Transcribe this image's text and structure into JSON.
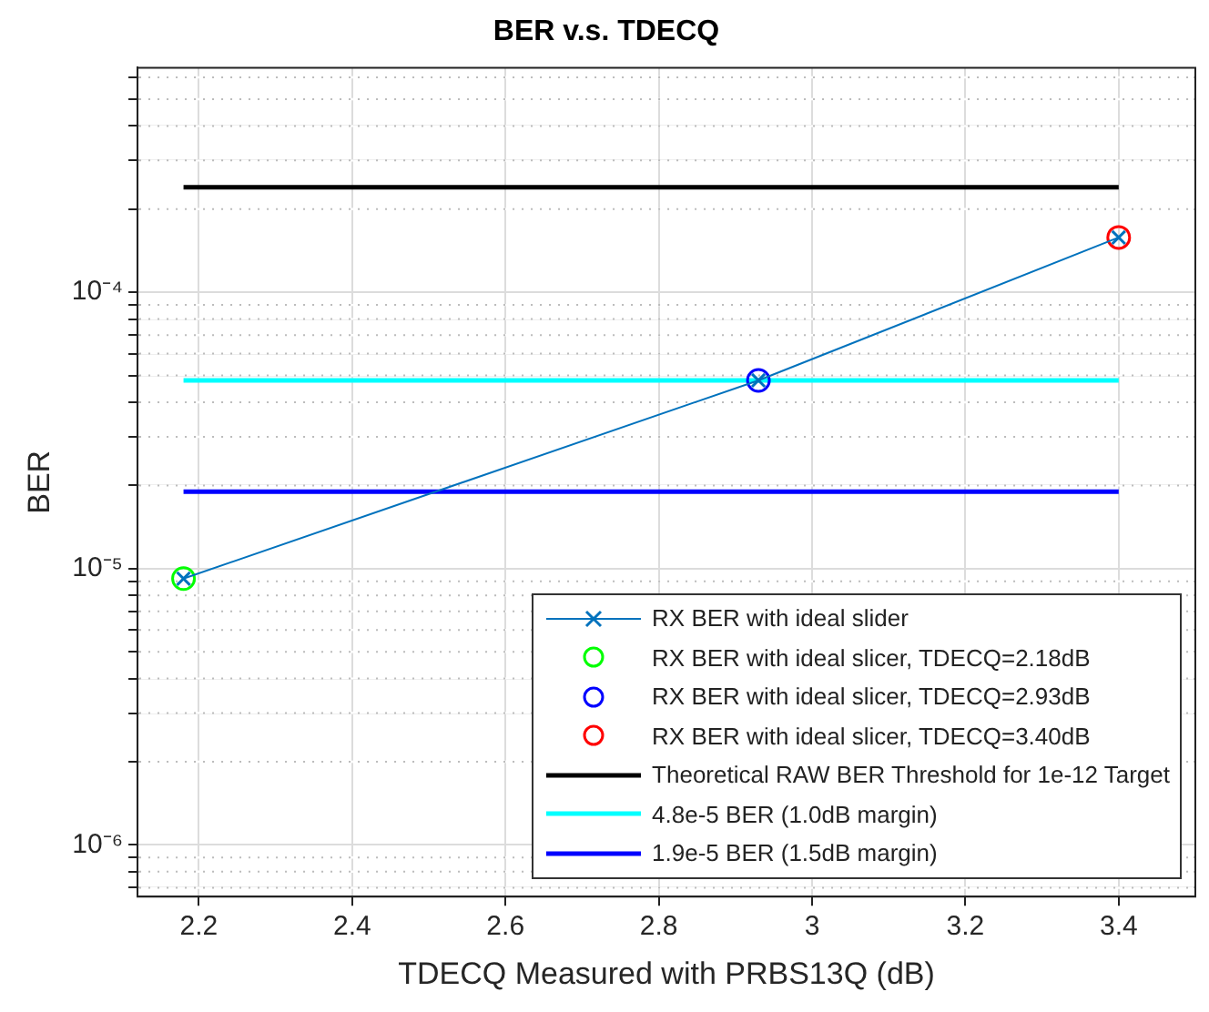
{
  "chart_data": {
    "type": "line",
    "title": "BER v.s. TDECQ",
    "xlabel": "TDECQ Measured with PRBS13Q (dB)",
    "ylabel": "BER",
    "series": [
      {
        "name": "RX BER with ideal slider",
        "color": "#0072bd",
        "marker": "cross",
        "x": [
          2.18,
          2.93,
          3.4
        ],
        "values": [
          9.2e-06,
          4.8e-05,
          0.000158
        ]
      },
      {
        "name": "RX BER with ideal slicer, TDECQ=2.18dB",
        "type": "scatter",
        "color": "#00ff00",
        "marker": "circle",
        "x": [
          2.18
        ],
        "values": [
          9.2e-06
        ]
      },
      {
        "name": "RX BER with ideal slicer, TDECQ=2.93dB",
        "type": "scatter",
        "color": "#0000ff",
        "marker": "circle",
        "x": [
          2.93
        ],
        "values": [
          4.8e-05
        ]
      },
      {
        "name": "RX BER with ideal slicer, TDECQ=3.40dB",
        "type": "scatter",
        "color": "#ff0000",
        "marker": "circle",
        "x": [
          3.4
        ],
        "values": [
          0.000158
        ]
      },
      {
        "name": "Theoretical RAW BER Threshold for 1e-12 Target",
        "color": "#000000",
        "marker": "none",
        "x": [
          2.18,
          3.4
        ],
        "values": [
          0.00024,
          0.00024
        ]
      },
      {
        "name": "4.8e-5 BER (1.0dB margin)",
        "color": "#00ffff",
        "marker": "none",
        "x": [
          2.18,
          3.4
        ],
        "values": [
          4.8e-05,
          4.8e-05
        ]
      },
      {
        "name": "1.9e-5 BER (1.5dB margin)",
        "color": "#0000ff",
        "marker": "none",
        "x": [
          2.18,
          3.4
        ],
        "values": [
          1.9e-05,
          1.9e-05
        ]
      }
    ],
    "log": "y",
    "grid": true,
    "legend": "bottom right",
    "xlim": [
      2.12,
      3.5
    ],
    "xticks": [
      2.2,
      2.4,
      2.6,
      2.8,
      3,
      3.2,
      3.4
    ],
    "ylim": [
      6.5e-07,
      0.00065
    ],
    "yticks": [
      {
        "value": 7e-07,
        "label": null
      },
      {
        "value": 8e-07,
        "label": null
      },
      {
        "value": 9e-07,
        "label": null
      },
      {
        "value": 1e-06,
        "label": "10⁻⁶"
      },
      {
        "value": 2e-06,
        "label": null
      },
      {
        "value": 3e-06,
        "label": null
      },
      {
        "value": 4e-06,
        "label": null
      },
      {
        "value": 5e-06,
        "label": null
      },
      {
        "value": 6e-06,
        "label": null
      },
      {
        "value": 7e-06,
        "label": null
      },
      {
        "value": 8e-06,
        "label": null
      },
      {
        "value": 9e-06,
        "label": null
      },
      {
        "value": 1e-05,
        "label": "10⁻⁵"
      },
      {
        "value": 2e-05,
        "label": null
      },
      {
        "value": 3e-05,
        "label": null
      },
      {
        "value": 4e-05,
        "label": null
      },
      {
        "value": 5e-05,
        "label": null
      },
      {
        "value": 6e-05,
        "label": null
      },
      {
        "value": 7e-05,
        "label": null
      },
      {
        "value": 8e-05,
        "label": null
      },
      {
        "value": 9e-05,
        "label": null
      },
      {
        "value": 0.0001,
        "label": "10⁻⁴"
      },
      {
        "value": 0.0002,
        "label": null
      },
      {
        "value": 0.0003,
        "label": null
      },
      {
        "value": 0.0004,
        "label": null
      },
      {
        "value": 0.0005,
        "label": null
      },
      {
        "value": 0.0006,
        "label": null
      }
    ]
  }
}
